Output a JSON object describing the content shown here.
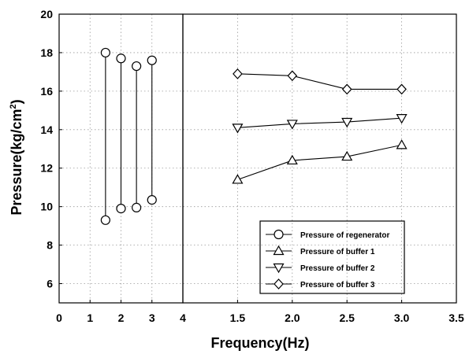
{
  "chart_data": {
    "type": "line",
    "ylabel": "Pressure(kg/cm",
    "ylabel_sup": "2",
    "ylabel_close": ")",
    "xlabel": "Frequency(Hz)",
    "ylim": [
      5,
      20
    ],
    "yticks": [
      "6",
      "8",
      "10",
      "12",
      "14",
      "16",
      "18",
      "20"
    ],
    "left_panel": {
      "xlim": [
        0,
        4
      ],
      "xticks": [
        "0",
        "1",
        "2",
        "3",
        "4"
      ],
      "series": [
        {
          "name": "Pressure of regenerator",
          "marker": "circle",
          "x": [
            1.5,
            2.0,
            2.5,
            3.0
          ],
          "high": [
            18.0,
            17.7,
            17.3,
            17.6
          ],
          "low": [
            9.3,
            9.9,
            9.95,
            10.35
          ]
        }
      ]
    },
    "right_panel": {
      "xlim": [
        1.0,
        3.5
      ],
      "xticks": [
        "1.5",
        "2.0",
        "2.5",
        "3.0",
        "3.5"
      ],
      "x": [
        1.5,
        2.0,
        2.5,
        3.0
      ],
      "series": [
        {
          "name": "Pressure of buffer 1",
          "marker": "triangle-up",
          "values": [
            11.4,
            12.4,
            12.6,
            13.2
          ]
        },
        {
          "name": "Pressure of buffer 2",
          "marker": "triangle-down",
          "values": [
            14.1,
            14.3,
            14.4,
            14.6
          ]
        },
        {
          "name": "Pressure of buffer 3",
          "marker": "diamond",
          "values": [
            16.9,
            16.8,
            16.1,
            16.1
          ]
        }
      ]
    },
    "legend": {
      "placement": "bottom-right",
      "entries": [
        {
          "label": "Pressure of regenerator",
          "marker": "circle"
        },
        {
          "label": "Pressure of buffer 1",
          "marker": "triangle-up"
        },
        {
          "label": "Pressure of buffer 2",
          "marker": "triangle-down"
        },
        {
          "label": "Pressure of buffer 3",
          "marker": "diamond"
        }
      ]
    },
    "grid": true
  }
}
